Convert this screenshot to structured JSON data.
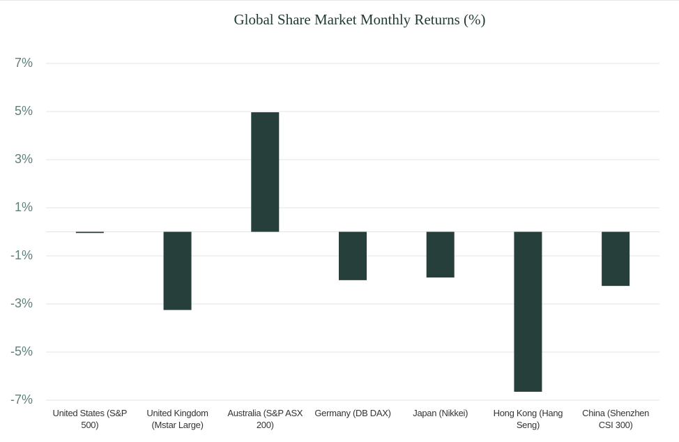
{
  "chart_data": {
    "type": "bar",
    "title": "Global Share Market Monthly Returns (%)",
    "categories": [
      "United States (S&P 500)",
      "United Kingdom (Mstar Large)",
      "Australia (S&P ASX 200)",
      "Germany (DB DAX)",
      "Japan (Nikkei)",
      "Hong Kong (Hang Seng)",
      "China (Shenzhen CSI 300)"
    ],
    "values": [
      -0.05,
      -3.25,
      4.97,
      -2.01,
      -1.9,
      -6.65,
      -2.25
    ],
    "color": "#263f3b",
    "ylim": [
      -7,
      7
    ],
    "yticks": [
      {
        "value": 7,
        "label": "7%"
      },
      {
        "value": 5,
        "label": "5%"
      },
      {
        "value": 3,
        "label": "3%"
      },
      {
        "value": 1,
        "label": "1%"
      },
      {
        "value": -1,
        "label": "-1%"
      },
      {
        "value": -3,
        "label": "-3%"
      },
      {
        "value": -5,
        "label": "-5%"
      },
      {
        "value": -7,
        "label": "-7%"
      }
    ],
    "grid": true
  }
}
